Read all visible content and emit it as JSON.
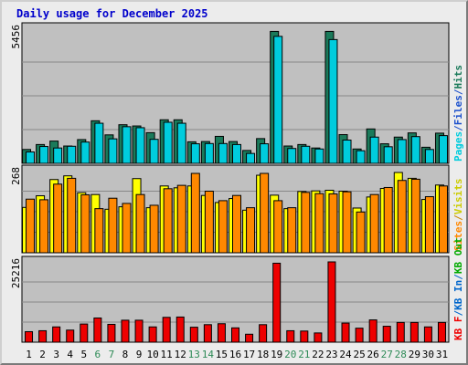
{
  "title": "Daily usage for December 2025",
  "colors": {
    "pages": "#1a7a5a",
    "files": "#00ccdd",
    "hits": "#1a7a5a",
    "visits": "#ffff00",
    "sites": "#ff8800",
    "kbin": "#0066cc",
    "kbout": "#00aa00",
    "kbf": "#ee0000",
    "weekend_day": "#2e8b57",
    "weekday": "#000000",
    "panel_bg": "#c0c0c0"
  },
  "chart_data": [
    {
      "type": "bar",
      "name": "hits-files-pages",
      "ymax_label": "5456",
      "ymax": 5456,
      "legend": [
        {
          "label": "Pages",
          "color": "#00ccdd"
        },
        {
          "label": "/",
          "color": "#1a4fcc"
        },
        {
          "label": "Files",
          "color": "#1a4fcc"
        },
        {
          "label": "/",
          "color": "#1a4fcc"
        },
        {
          "label": "Hits",
          "color": "#1a7a5a"
        }
      ],
      "categories": [
        "1",
        "2",
        "3",
        "4",
        "5",
        "6",
        "7",
        "8",
        "9",
        "10",
        "11",
        "12",
        "13",
        "14",
        "15",
        "16",
        "17",
        "18",
        "19",
        "20",
        "21",
        "22",
        "23",
        "24",
        "25",
        "26",
        "27",
        "28",
        "29",
        "30",
        "31"
      ],
      "series": [
        {
          "key": "hits",
          "values": [
            560,
            760,
            900,
            700,
            960,
            1720,
            1150,
            1560,
            1510,
            1240,
            1760,
            1760,
            870,
            880,
            1090,
            880,
            520,
            1000,
            5330,
            700,
            760,
            620,
            5330,
            1160,
            580,
            1390,
            790,
            1060,
            1230,
            650,
            1220
          ]
        },
        {
          "key": "files",
          "values": [
            460,
            680,
            620,
            690,
            860,
            1620,
            990,
            1480,
            1440,
            970,
            1660,
            1620,
            790,
            800,
            800,
            760,
            400,
            790,
            5130,
            600,
            690,
            580,
            5000,
            940,
            510,
            1060,
            670,
            960,
            1080,
            560,
            1120
          ]
        }
      ]
    },
    {
      "type": "bar",
      "name": "visits-sites",
      "ymax_label": "268",
      "ymax": 268,
      "legend": [
        {
          "label": "Sites",
          "color": "#ff8800"
        },
        {
          "label": "/",
          "color": "#cc8800"
        },
        {
          "label": "Visits",
          "color": "#cccc00"
        }
      ],
      "categories": [
        "1",
        "2",
        "3",
        "4",
        "5",
        "6",
        "7",
        "8",
        "9",
        "10",
        "11",
        "12",
        "13",
        "14",
        "15",
        "16",
        "17",
        "18",
        "19",
        "20",
        "21",
        "22",
        "23",
        "24",
        "25",
        "26",
        "27",
        "28",
        "29",
        "30",
        "31"
      ],
      "series": [
        {
          "key": "visits",
          "values": [
            148,
            186,
            239,
            251,
            196,
            190,
            142,
            150,
            242,
            147,
            218,
            212,
            218,
            187,
            164,
            177,
            139,
            253,
            188,
            144,
            200,
            202,
            204,
            201,
            146,
            182,
            210,
            262,
            243,
            174,
            221
          ]
        },
        {
          "key": "sites",
          "values": [
            175,
            173,
            224,
            243,
            189,
            144,
            178,
            161,
            190,
            155,
            209,
            220,
            259,
            201,
            170,
            187,
            147,
            259,
            170,
            147,
            197,
            193,
            192,
            199,
            133,
            190,
            213,
            236,
            240,
            183,
            218
          ]
        }
      ]
    },
    {
      "type": "bar",
      "name": "kbf",
      "ymax_label": "25216",
      "ymax": 25216,
      "legend": [
        {
          "label": "KB F",
          "color": "#ee0000"
        },
        {
          "label": "/",
          "color": "#0066cc"
        },
        {
          "label": "KB In",
          "color": "#0066cc"
        },
        {
          "label": "/",
          "color": "#0066cc"
        },
        {
          "label": "KB Out",
          "color": "#00aa00"
        }
      ],
      "categories": [
        "1",
        "2",
        "3",
        "4",
        "5",
        "6",
        "7",
        "8",
        "9",
        "10",
        "11",
        "12",
        "13",
        "14",
        "15",
        "16",
        "17",
        "18",
        "19",
        "20",
        "21",
        "22",
        "23",
        "24",
        "25",
        "26",
        "27",
        "28",
        "29",
        "30",
        "31"
      ],
      "series": [
        {
          "key": "kbf",
          "values": [
            3300,
            3600,
            4800,
            3800,
            5700,
            7600,
            5600,
            6900,
            6900,
            4800,
            7800,
            7900,
            4700,
            5500,
            5800,
            4500,
            2500,
            5500,
            24800,
            3600,
            3500,
            2900,
            25216,
            6000,
            4400,
            7000,
            5000,
            6200,
            6200,
            4800,
            6200
          ]
        }
      ]
    }
  ],
  "weekend_days": [
    "6",
    "7",
    "13",
    "14",
    "20",
    "21",
    "27",
    "28"
  ]
}
